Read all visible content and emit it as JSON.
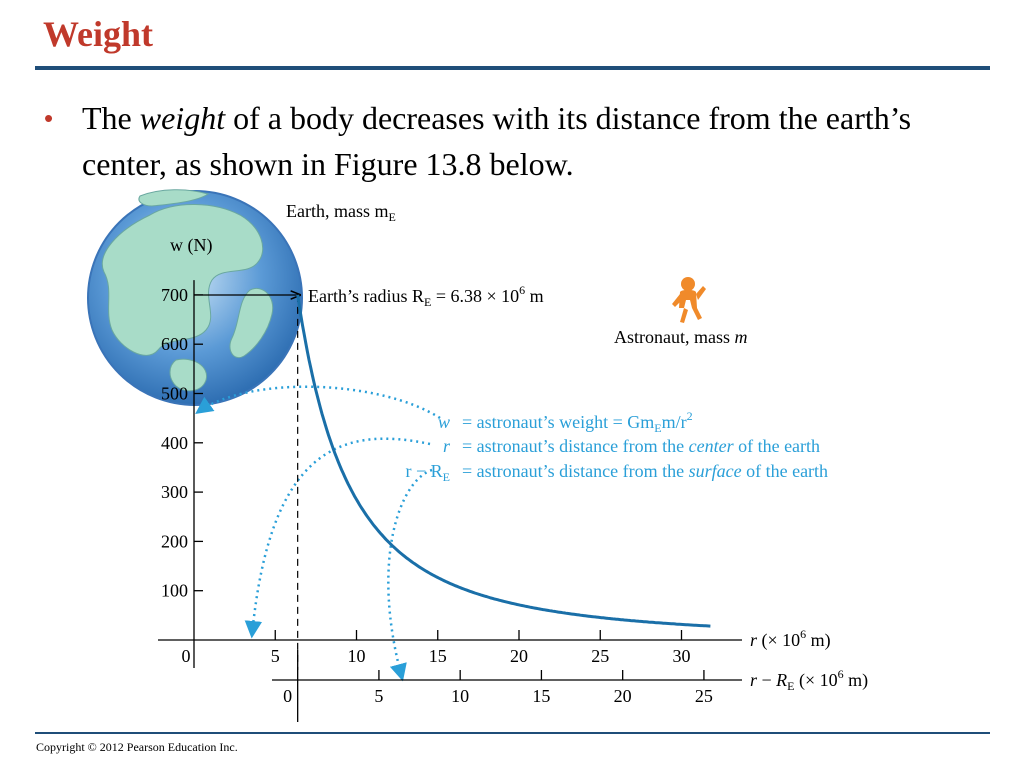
{
  "slide": {
    "title": "Weight",
    "bullet": {
      "pre": "The ",
      "emph": "weight",
      "post": " of a body decreases with its distance from the earth’s center, as shown in Figure 13.8 below."
    },
    "copyright": "Copyright © 2012 Pearson Education Inc."
  },
  "figure": {
    "earth_label": "Earth, mass m",
    "earth_label_sub": "E",
    "radius_label": "Earth’s radius R",
    "radius_label_sub": "E",
    "radius_value": " = 6.38 × 10",
    "radius_exp": "6",
    "radius_unit": " m",
    "astronaut_label": "Astronaut, mass ",
    "astronaut_label_var": "m",
    "def_w_lhs": "w",
    "def_w_rhs": "= astronaut’s weight = Gm",
    "def_w_rhs_sub": "E",
    "def_w_rhs_tail": "m/r",
    "def_w_rhs_exp": "2",
    "def_r_lhs": "r",
    "def_r_rhs": "= astronaut’s distance from the ",
    "def_r_emph": "center",
    "def_r_tail": " of the earth",
    "def_rr_lhs": "r − R",
    "def_rr_lhs_sub": "E",
    "def_rr_rhs": "= astronaut’s distance from the ",
    "def_rr_emph": "surface",
    "def_rr_tail": " of the earth",
    "colors": {
      "curve": "#1a6fa8",
      "annotation": "#2a9fd8",
      "earth_ocean": "#4a8fd0",
      "earth_land": "#a8dcc8",
      "astronaut": "#f08a2a"
    }
  },
  "chart_data": {
    "type": "line",
    "title": "",
    "ylabel": "w (N)",
    "xlabel": "r (× 10^6 m)",
    "x2label": "r − R_E (× 10^6 m)",
    "y_ticks": [
      100,
      200,
      300,
      400,
      500,
      600,
      700
    ],
    "x_ticks": [
      0,
      5,
      10,
      15,
      20,
      25,
      30
    ],
    "x2_ticks": [
      0,
      5,
      10,
      15,
      20,
      25
    ],
    "xlim": [
      0,
      33
    ],
    "ylim": [
      0,
      760
    ],
    "R_E": 6.38,
    "series": [
      {
        "x": [
          6.38,
          7,
          8,
          9,
          10,
          12,
          14,
          16,
          18,
          20,
          22,
          24,
          26,
          28,
          30,
          31.8
        ],
        "y": [
          700,
          581,
          445,
          352,
          285,
          198,
          145,
          111,
          88,
          71,
          59,
          49,
          42,
          36,
          32,
          28
        ]
      }
    ]
  }
}
